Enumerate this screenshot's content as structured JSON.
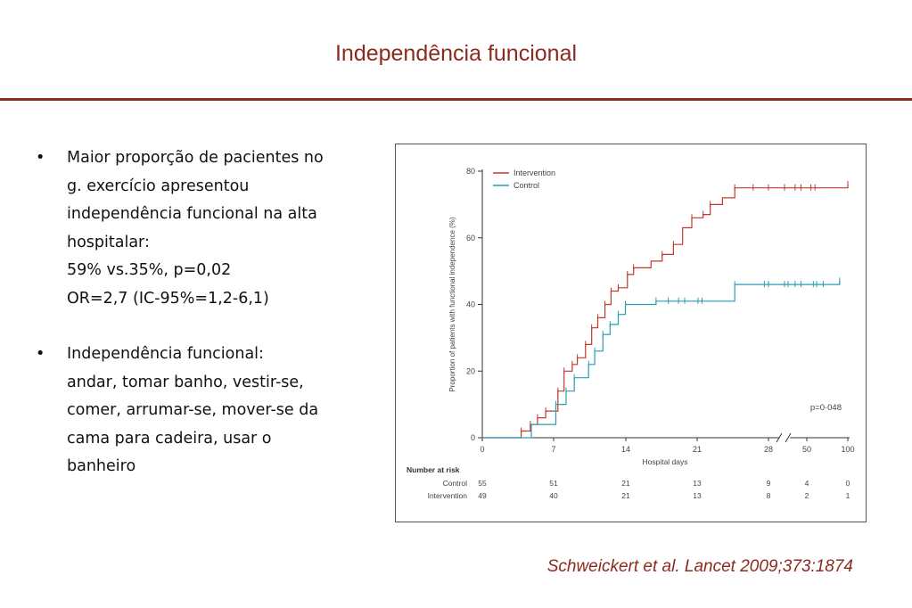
{
  "slide": {
    "title": "Independência funcional",
    "citation": "Schweickert et al. Lancet 2009;373:1874"
  },
  "bullets": [
    {
      "lines": [
        "Maior proporção de pacientes no",
        "g. exercício apresentou",
        "independência funcional na alta",
        "hospitalar:",
        "59% vs.35%, p=0,02",
        "OR=2,7 (IC-95%=1,2-6,1)"
      ]
    },
    {
      "lines": [
        "Independência funcional:",
        "andar, tomar banho, vestir-se,",
        "comer, arrumar-se, mover-se da",
        "cama para cadeira, usar o",
        "banheiro"
      ]
    }
  ],
  "chart_data": {
    "type": "line",
    "subtype": "kaplan-meier-step",
    "xlabel": "Hospital days",
    "ylabel": "Proportion of patients with functional independence (%)",
    "x_ticks": [
      "0",
      "7",
      "14",
      "21",
      "28",
      "50",
      "100"
    ],
    "y_ticks": [
      0,
      20,
      40,
      60,
      80
    ],
    "ylim": [
      0,
      80
    ],
    "axis_break": "between 28 and 50",
    "annotation": "p=0·048",
    "legend_position": "top-left",
    "colors": {
      "Intervention": "#c0392b",
      "Control": "#2a9db5"
    },
    "series": [
      {
        "name": "Intervention",
        "steps": [
          [
            0,
            0
          ],
          [
            3.8,
            2
          ],
          [
            4.7,
            4
          ],
          [
            5.4,
            6
          ],
          [
            6.2,
            8
          ],
          [
            7.4,
            14
          ],
          [
            8,
            20
          ],
          [
            8.8,
            22
          ],
          [
            9.3,
            24
          ],
          [
            10.1,
            28
          ],
          [
            10.7,
            33
          ],
          [
            11.3,
            36
          ],
          [
            12,
            40
          ],
          [
            12.6,
            44
          ],
          [
            13.3,
            45
          ],
          [
            14.2,
            49
          ],
          [
            14.8,
            51
          ],
          [
            16.5,
            53
          ],
          [
            17.6,
            55
          ],
          [
            18.7,
            58
          ],
          [
            19.6,
            63
          ],
          [
            20.5,
            66
          ],
          [
            21.6,
            67
          ],
          [
            22.3,
            70
          ],
          [
            23.5,
            72
          ],
          [
            24.7,
            75
          ],
          [
            28,
            75
          ],
          [
            31,
            75
          ],
          [
            100,
            76
          ]
        ],
        "censor_x": [
          3.8,
          4.7,
          5.4,
          6.2,
          7.4,
          8,
          8.8,
          9.3,
          10.1,
          10.7,
          11.3,
          12,
          12.6,
          13.3,
          14.2,
          14.8,
          17.6,
          18.7,
          20.5,
          21.6,
          22.3,
          24.7,
          26.5,
          28,
          31,
          40,
          45,
          55,
          60,
          100
        ]
      },
      {
        "name": "Control",
        "steps": [
          [
            0,
            0
          ],
          [
            4.8,
            4
          ],
          [
            7.2,
            10
          ],
          [
            8.2,
            14
          ],
          [
            9,
            18
          ],
          [
            10.4,
            22
          ],
          [
            11,
            26
          ],
          [
            11.8,
            31
          ],
          [
            12.5,
            34
          ],
          [
            13.3,
            37
          ],
          [
            14,
            40
          ],
          [
            17,
            41
          ],
          [
            24.7,
            46
          ],
          [
            28,
            46
          ],
          [
            31,
            46
          ],
          [
            90,
            47
          ]
        ],
        "censor_x": [
          7.2,
          8.2,
          9,
          10.4,
          11,
          11.8,
          12.5,
          13.3,
          14,
          17,
          18.2,
          19.2,
          19.8,
          21.1,
          21.5,
          24.7,
          27.6,
          28,
          31,
          34,
          40,
          45,
          58,
          62,
          70,
          90
        ]
      }
    ],
    "number_at_risk": {
      "header": "Number at risk",
      "rows": [
        {
          "label": "Control",
          "values": [
            "55",
            "51",
            "21",
            "13",
            "9",
            "4",
            "0"
          ]
        },
        {
          "label": "Intervention",
          "values": [
            "49",
            "40",
            "21",
            "13",
            "8",
            "2",
            "1"
          ]
        }
      ]
    }
  }
}
